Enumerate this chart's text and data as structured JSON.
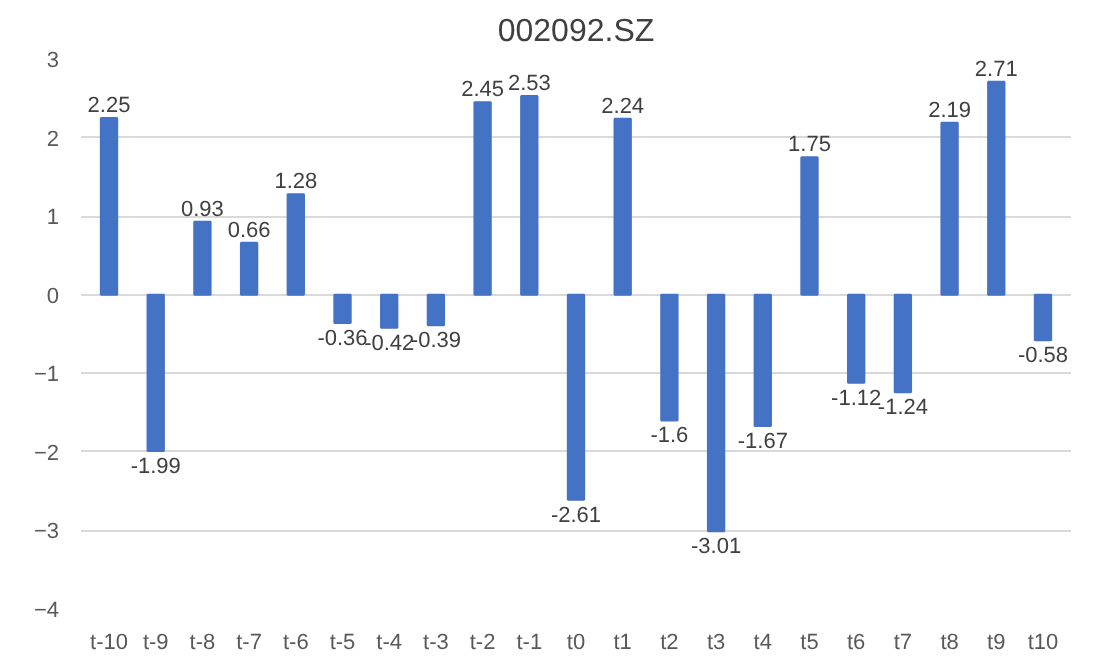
{
  "chart_data": {
    "type": "bar",
    "title": "002092.SZ",
    "categories": [
      "t-10",
      "t-9",
      "t-8",
      "t-7",
      "t-6",
      "t-5",
      "t-4",
      "t-3",
      "t-2",
      "t-1",
      "t0",
      "t1",
      "t2",
      "t3",
      "t4",
      "t5",
      "t6",
      "t7",
      "t8",
      "t9",
      "t10"
    ],
    "values": [
      2.25,
      -1.99,
      0.93,
      0.66,
      1.28,
      -0.36,
      -0.42,
      -0.39,
      2.45,
      2.53,
      -2.61,
      2.24,
      -1.6,
      -3.01,
      -1.67,
      1.75,
      -1.12,
      -1.24,
      2.19,
      2.71,
      -0.58
    ],
    "color": "#4472c4",
    "ylim": [
      -4,
      3
    ],
    "yticks": [
      -4,
      -3,
      -2,
      -1,
      0,
      1,
      2,
      3
    ],
    "grid": "y",
    "data_labels": true
  }
}
